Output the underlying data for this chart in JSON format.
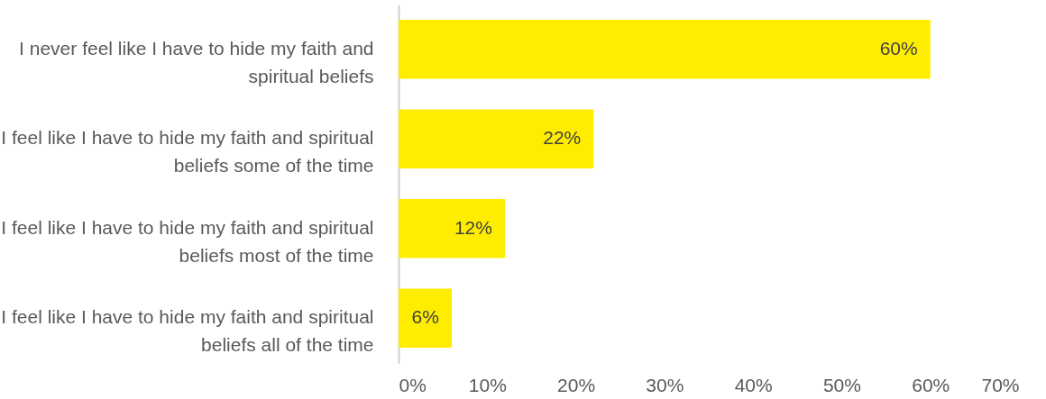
{
  "chart_data": {
    "type": "bar",
    "orientation": "horizontal",
    "categories": [
      "I never feel like I have to hide my faith and spiritual beliefs",
      "I feel like I have to hide my faith and spiritual beliefs some of the time",
      "I feel like I have to hide my faith and spiritual beliefs most of the time",
      "I feel like I have to hide my faith and spiritual beliefs all of the time"
    ],
    "values": [
      60,
      22,
      12,
      6
    ],
    "value_labels": [
      "60%",
      "22%",
      "12%",
      "6%"
    ],
    "color": "#ffed00",
    "xlim": [
      0,
      70
    ],
    "xticks": [
      {
        "value": 0,
        "label": "0%"
      },
      {
        "value": 10,
        "label": "10%"
      },
      {
        "value": 20,
        "label": "20%"
      },
      {
        "value": 30,
        "label": "30%"
      },
      {
        "value": 40,
        "label": "40%"
      },
      {
        "value": 50,
        "label": "50%"
      },
      {
        "value": 60,
        "label": "60%"
      },
      {
        "value": 70,
        "label": "70%"
      }
    ],
    "grid": false
  }
}
